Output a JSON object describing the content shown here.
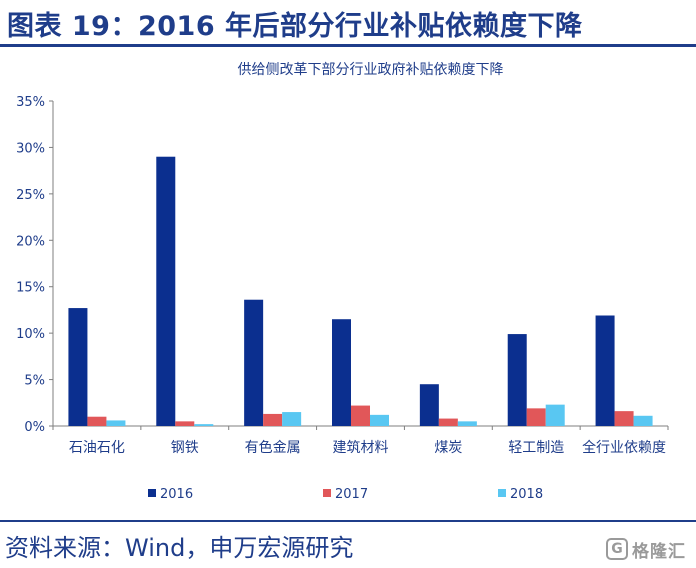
{
  "header": {
    "title": "图表 19：2016 年后部分行业补贴依赖度下降"
  },
  "footer": {
    "source": "资料来源：Wind，申万宏源研究"
  },
  "watermark": {
    "icon": "G",
    "text": "格隆汇"
  },
  "colors": {
    "title_blue": "#1f3d8a",
    "series_2016": "#0b2f8f",
    "series_2017": "#e15759",
    "series_2018": "#59c7f2"
  },
  "chart_data": {
    "type": "bar",
    "title": "供给侧改革下部分行业政府补贴依赖度下降",
    "xlabel": "",
    "ylabel": "",
    "ylim": [
      0,
      0.35
    ],
    "yticks": [
      "0%",
      "5%",
      "10%",
      "15%",
      "20%",
      "25%",
      "30%",
      "35%"
    ],
    "grid": false,
    "legend": "bottom",
    "categories": [
      "石油石化",
      "钢铁",
      "有色金属",
      "建筑材料",
      "煤炭",
      "轻工制造",
      "全行业依赖度"
    ],
    "series": [
      {
        "name": "2016",
        "color": "#0b2f8f",
        "values": [
          0.127,
          0.29,
          0.136,
          0.115,
          0.045,
          0.099,
          0.119
        ]
      },
      {
        "name": "2017",
        "color": "#e15759",
        "values": [
          0.01,
          0.005,
          0.013,
          0.022,
          0.008,
          0.019,
          0.016
        ]
      },
      {
        "name": "2018",
        "color": "#59c7f2",
        "values": [
          0.006,
          0.002,
          0.015,
          0.012,
          0.005,
          0.023,
          0.011
        ]
      }
    ]
  }
}
